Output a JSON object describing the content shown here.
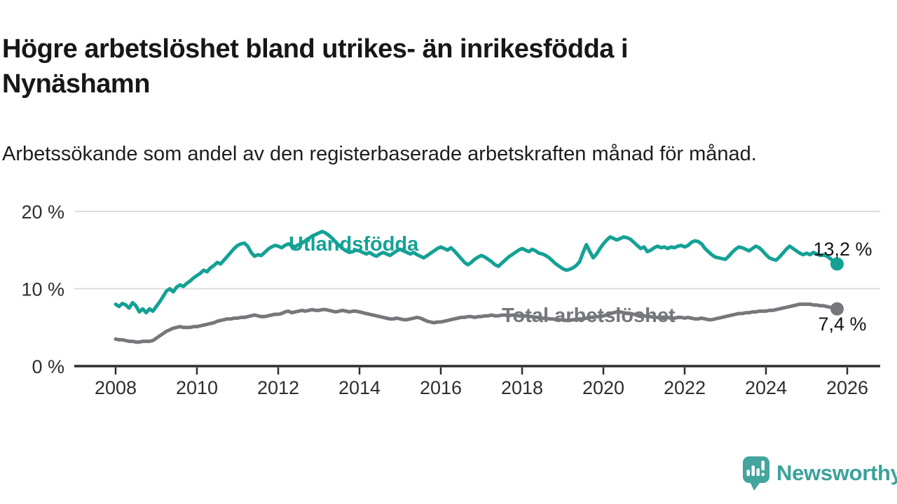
{
  "branding": {
    "name": "Newsworthy",
    "icon_color": "#44a49e",
    "text_color": "#3ba29b"
  },
  "chart_data": {
    "type": "line",
    "title": "Högre arbetslöshet bland utrikes- än inrikesfödda i Nynäshamn",
    "subtitle": "Arbetssökande som andel av den registerbaserade arbetskraften månad för månad.",
    "xlabel": "",
    "ylabel": "",
    "grid": true,
    "legend_position": "inline-on-line",
    "ylim": [
      0,
      21
    ],
    "x_start": "2008-01",
    "x_end": "2025-10",
    "x_step_months": 1,
    "y_ticks": [
      {
        "value": 0,
        "label": "0 %"
      },
      {
        "value": 10,
        "label": "10 %"
      },
      {
        "value": 20,
        "label": "20 %"
      }
    ],
    "x_ticks": [
      {
        "value": 2008,
        "label": "2008"
      },
      {
        "value": 2010,
        "label": "2010"
      },
      {
        "value": 2012,
        "label": "2012"
      },
      {
        "value": 2014,
        "label": "2014"
      },
      {
        "value": 2016,
        "label": "2016"
      },
      {
        "value": 2018,
        "label": "2018"
      },
      {
        "value": 2020,
        "label": "2020"
      },
      {
        "value": 2022,
        "label": "2022"
      },
      {
        "value": 2024,
        "label": "2024"
      },
      {
        "value": 2026,
        "label": "2026"
      }
    ],
    "series": [
      {
        "name": "Utlandsfödda",
        "color": "#14a195",
        "end_label": "13,2 %",
        "values": [
          8.0,
          7.7,
          8.1,
          7.9,
          7.5,
          8.2,
          7.8,
          7.0,
          7.4,
          6.9,
          7.4,
          7.1,
          7.7,
          8.3,
          9.0,
          9.7,
          10.0,
          9.6,
          10.2,
          10.5,
          10.3,
          10.7,
          11.0,
          11.4,
          11.7,
          12.0,
          12.4,
          12.2,
          12.7,
          13.0,
          13.4,
          13.2,
          13.7,
          14.2,
          14.7,
          15.2,
          15.6,
          15.8,
          15.9,
          15.5,
          14.7,
          14.2,
          14.4,
          14.3,
          14.7,
          15.1,
          15.4,
          15.6,
          15.5,
          15.3,
          15.6,
          15.8,
          15.6,
          15.4,
          15.7,
          15.9,
          16.2,
          16.5,
          16.8,
          17.0,
          17.2,
          17.4,
          17.2,
          16.9,
          16.5,
          16.0,
          15.6,
          15.2,
          14.9,
          14.7,
          14.8,
          15.0,
          14.9,
          14.7,
          14.5,
          14.7,
          14.4,
          14.2,
          14.5,
          14.7,
          14.5,
          14.3,
          14.6,
          14.9,
          15.1,
          14.9,
          14.7,
          14.5,
          14.7,
          14.4,
          14.2,
          14.0,
          14.3,
          14.6,
          14.9,
          15.2,
          15.4,
          15.2,
          15.0,
          15.3,
          14.9,
          14.4,
          13.9,
          13.4,
          13.1,
          13.4,
          13.8,
          14.1,
          14.3,
          14.1,
          13.8,
          13.5,
          13.1,
          12.9,
          13.3,
          13.7,
          14.1,
          14.4,
          14.7,
          15.0,
          15.2,
          15.0,
          14.8,
          15.1,
          14.9,
          14.6,
          14.5,
          14.3,
          14.0,
          13.6,
          13.2,
          12.9,
          12.6,
          12.4,
          12.5,
          12.7,
          13.0,
          13.5,
          14.7,
          15.7,
          14.8,
          14.0,
          14.5,
          15.2,
          15.8,
          16.3,
          16.7,
          16.5,
          16.3,
          16.5,
          16.7,
          16.6,
          16.4,
          16.0,
          15.6,
          15.2,
          15.4,
          14.8,
          15.0,
          15.3,
          15.5,
          15.3,
          15.4,
          15.2,
          15.4,
          15.3,
          15.5,
          15.6,
          15.4,
          15.6,
          16.0,
          16.2,
          16.1,
          15.8,
          15.2,
          14.8,
          14.4,
          14.1,
          14.0,
          13.9,
          13.8,
          14.2,
          14.7,
          15.1,
          15.4,
          15.3,
          15.1,
          14.9,
          15.2,
          15.5,
          15.3,
          14.9,
          14.4,
          14.0,
          13.8,
          13.7,
          14.1,
          14.6,
          15.1,
          15.5,
          15.2,
          14.9,
          14.6,
          14.4,
          14.6,
          14.4,
          14.7,
          14.5,
          14.3,
          14.4,
          14.2,
          13.9,
          13.5,
          13.2
        ]
      },
      {
        "name": "Total arbetslöshet",
        "color": "#76777b",
        "end_label": "7,4 %",
        "values": [
          3.5,
          3.4,
          3.4,
          3.3,
          3.2,
          3.2,
          3.1,
          3.1,
          3.2,
          3.2,
          3.2,
          3.3,
          3.6,
          3.9,
          4.2,
          4.5,
          4.7,
          4.9,
          5.0,
          5.1,
          5.0,
          5.0,
          5.0,
          5.1,
          5.1,
          5.2,
          5.3,
          5.4,
          5.5,
          5.6,
          5.8,
          5.9,
          6.0,
          6.1,
          6.1,
          6.2,
          6.2,
          6.3,
          6.3,
          6.4,
          6.5,
          6.6,
          6.5,
          6.4,
          6.4,
          6.5,
          6.6,
          6.7,
          6.7,
          6.8,
          7.0,
          7.1,
          6.9,
          7.0,
          7.1,
          7.2,
          7.1,
          7.2,
          7.3,
          7.2,
          7.2,
          7.3,
          7.3,
          7.2,
          7.1,
          7.0,
          7.1,
          7.2,
          7.1,
          7.0,
          7.1,
          7.1,
          7.0,
          6.9,
          6.8,
          6.7,
          6.6,
          6.5,
          6.4,
          6.3,
          6.2,
          6.1,
          6.1,
          6.2,
          6.1,
          6.0,
          6.0,
          6.1,
          6.2,
          6.3,
          6.2,
          6.0,
          5.8,
          5.7,
          5.6,
          5.7,
          5.7,
          5.8,
          5.9,
          6.0,
          6.1,
          6.2,
          6.3,
          6.3,
          6.4,
          6.4,
          6.3,
          6.4,
          6.4,
          6.5,
          6.5,
          6.6,
          6.5,
          6.5,
          6.6,
          6.6,
          6.5,
          6.6,
          6.6,
          6.5,
          6.5,
          6.5,
          6.4,
          6.4,
          6.3,
          6.3,
          6.2,
          6.2,
          6.1,
          6.1,
          6.0,
          6.0,
          6.0,
          5.9,
          5.9,
          6.0,
          6.0,
          6.1,
          6.1,
          6.2,
          6.3,
          6.3,
          6.4,
          6.4,
          6.5,
          6.6,
          6.8,
          6.9,
          7.0,
          7.0,
          6.9,
          6.8,
          6.8,
          6.7,
          6.6,
          6.6,
          6.5,
          6.4,
          6.4,
          6.3,
          6.3,
          6.2,
          6.2,
          6.3,
          6.2,
          6.2,
          6.3,
          6.3,
          6.2,
          6.3,
          6.2,
          6.1,
          6.1,
          6.2,
          6.1,
          6.0,
          6.0,
          6.1,
          6.2,
          6.3,
          6.4,
          6.5,
          6.6,
          6.7,
          6.8,
          6.8,
          6.9,
          6.9,
          7.0,
          7.0,
          7.1,
          7.1,
          7.1,
          7.2,
          7.2,
          7.3,
          7.4,
          7.5,
          7.6,
          7.7,
          7.8,
          7.9,
          8.0,
          8.0,
          8.0,
          8.0,
          7.9,
          7.9,
          7.8,
          7.8,
          7.7,
          7.6,
          7.5,
          7.4
        ]
      }
    ],
    "style": {
      "gridline_color": "#dcdcdc",
      "axis_color": "#2d2d2d",
      "background": "#ffffff"
    }
  }
}
